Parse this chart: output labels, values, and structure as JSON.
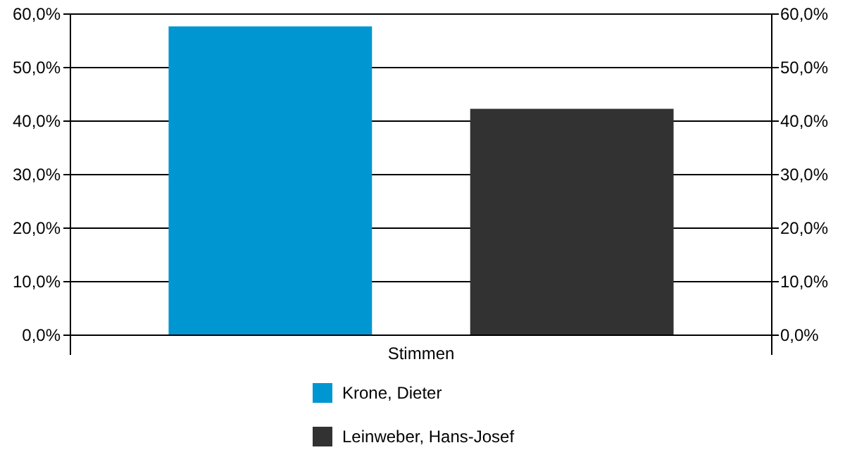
{
  "chart_data": {
    "type": "bar",
    "categories": [
      "Stimmen"
    ],
    "series": [
      {
        "name": "Krone, Dieter",
        "color": "#0096d1",
        "values": [
          57.7
        ]
      },
      {
        "name": "Leinweber, Hans-Josef",
        "color": "#323232",
        "values": [
          42.3
        ]
      }
    ],
    "ylim": [
      0,
      60
    ],
    "yticks": [
      {
        "value": 0,
        "label": "0,0%"
      },
      {
        "value": 10,
        "label": "10,0%"
      },
      {
        "value": 20,
        "label": "20,0%"
      },
      {
        "value": 30,
        "label": "30,0%"
      },
      {
        "value": 40,
        "label": "40,0%"
      },
      {
        "value": 50,
        "label": "50,0%"
      },
      {
        "value": 60,
        "label": "60,0%"
      }
    ],
    "grid": "y",
    "legend": "bottom"
  }
}
